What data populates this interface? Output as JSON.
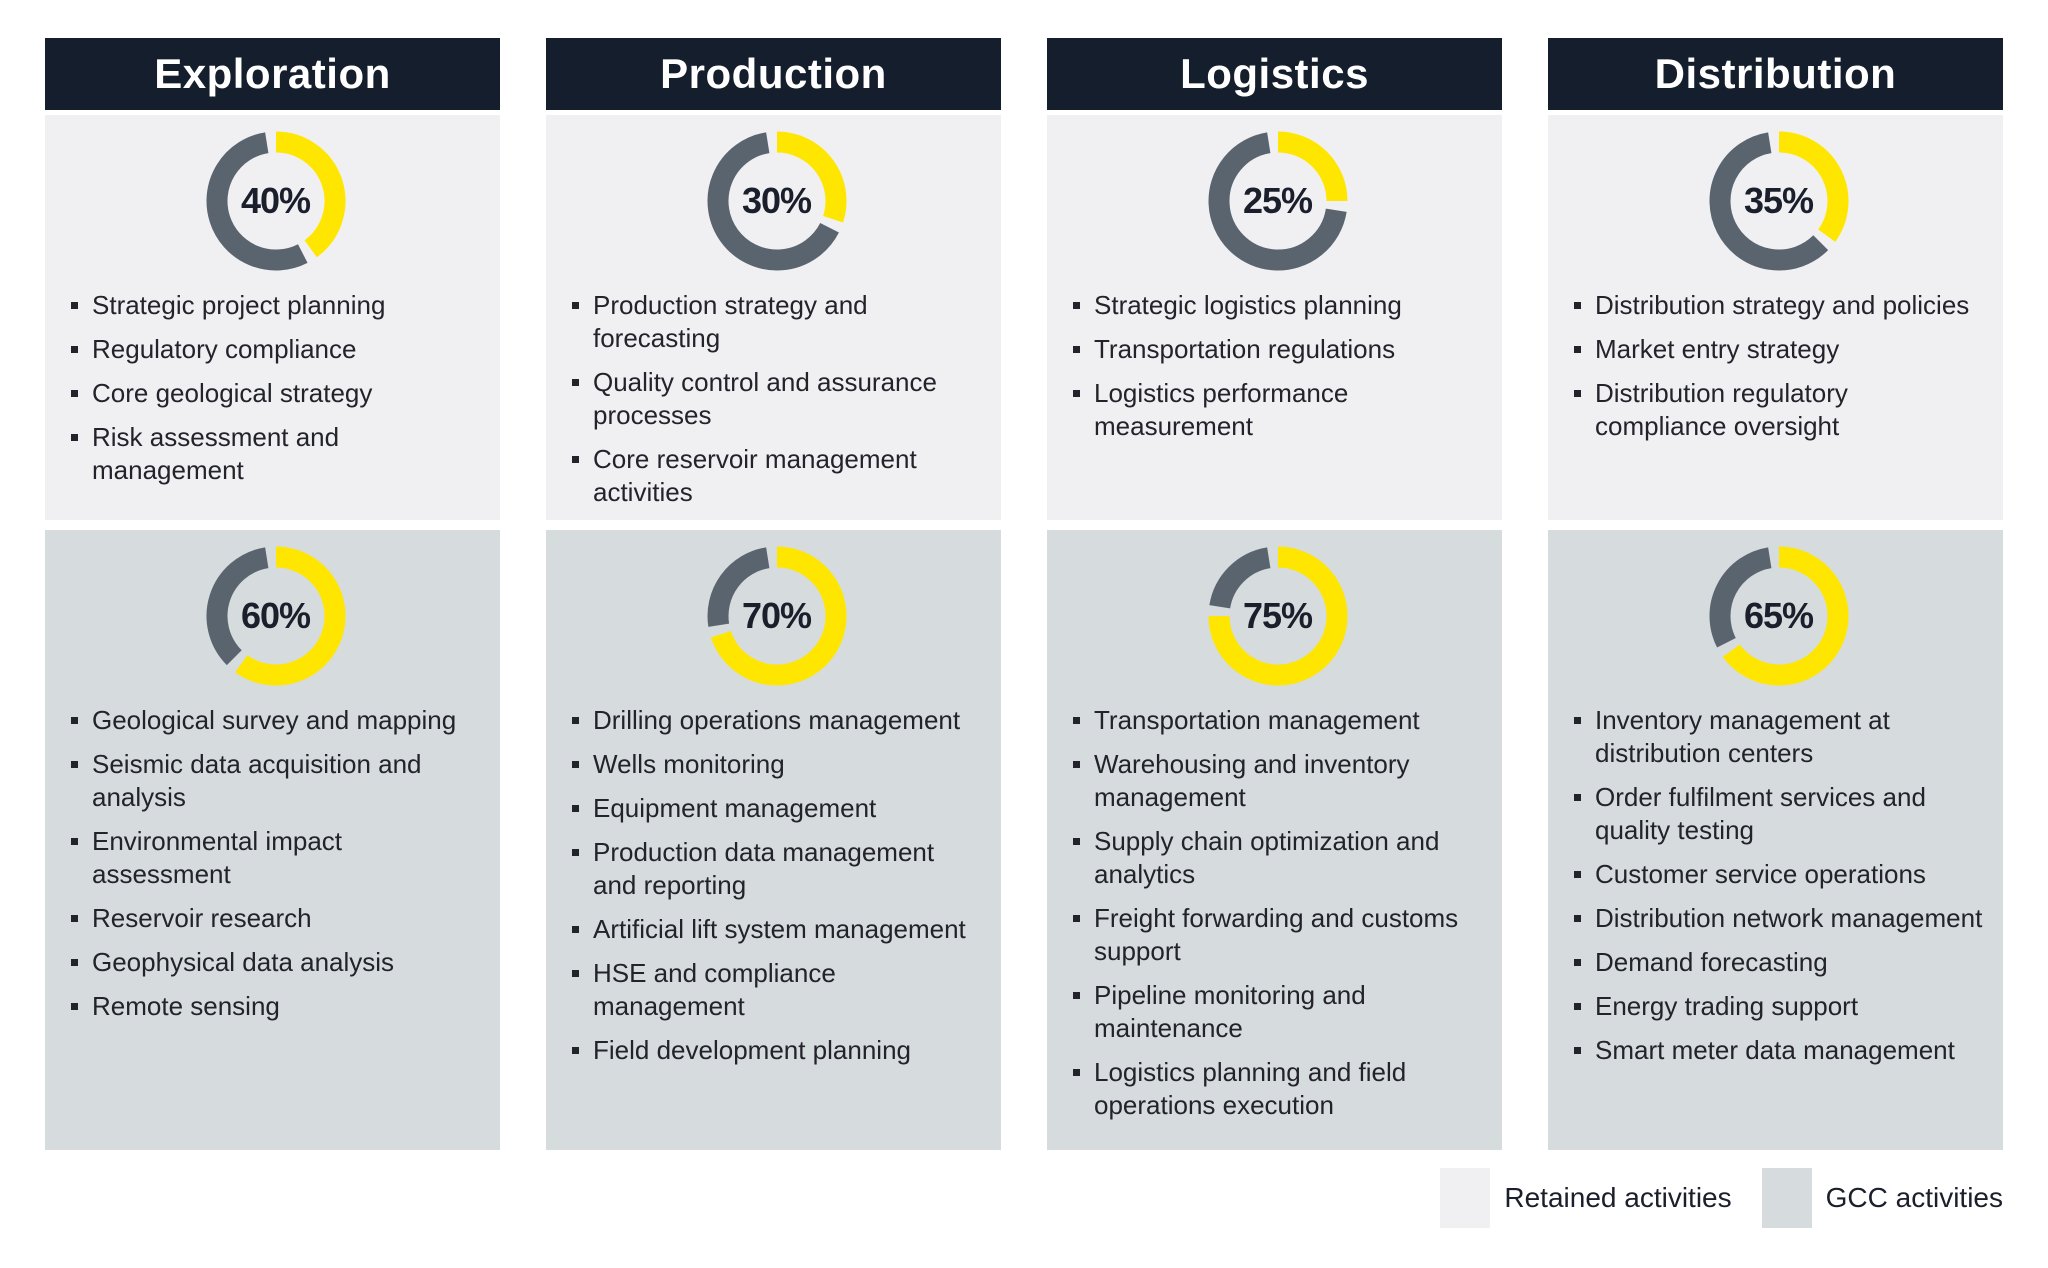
{
  "colors": {
    "header_bg": "#151E2C",
    "retained_bg": "#F0F0F3",
    "gcc_bg": "#D6DBDE",
    "donut_yellow": "#FFE600",
    "donut_slate": "#5A646F",
    "dark_text": "#1A1F2B",
    "body_text": "#23232B"
  },
  "legend": {
    "items": [
      {
        "label": "Retained activities",
        "color": "#F0F0F3"
      },
      {
        "label": "GCC activities",
        "color": "#D6DBDE"
      }
    ]
  },
  "columns": [
    {
      "title": "Exploration",
      "retained": {
        "percent": 40,
        "percent_label": "40%",
        "items": [
          "Strategic project planning",
          "Regulatory compliance",
          "Core geological strategy",
          "Risk assessment and management"
        ]
      },
      "gcc": {
        "percent": 60,
        "percent_label": "60%",
        "items": [
          "Geological survey and mapping",
          "Seismic data acquisition and analysis",
          "Environmental impact assessment",
          "Reservoir research",
          "Geophysical data analysis",
          "Remote sensing"
        ]
      }
    },
    {
      "title": "Production",
      "retained": {
        "percent": 30,
        "percent_label": "30%",
        "items": [
          "Production strategy and forecasting",
          "Quality control and assurance processes",
          "Core reservoir management activities"
        ]
      },
      "gcc": {
        "percent": 70,
        "percent_label": "70%",
        "items": [
          "Drilling operations management",
          "Wells monitoring",
          "Equipment management",
          "Production data management and reporting",
          "Artificial lift system management",
          "HSE and compliance management",
          "Field development planning"
        ]
      }
    },
    {
      "title": "Logistics",
      "retained": {
        "percent": 25,
        "percent_label": "25%",
        "items": [
          "Strategic logistics planning",
          "Transportation regulations",
          "Logistics performance measurement"
        ]
      },
      "gcc": {
        "percent": 75,
        "percent_label": "75%",
        "items": [
          "Transportation management",
          "Warehousing and inventory management",
          "Supply chain optimization and analytics",
          "Freight forwarding and customs support",
          "Pipeline monitoring and maintenance",
          "Logistics planning and field operations execution"
        ]
      }
    },
    {
      "title": "Distribution",
      "retained": {
        "percent": 35,
        "percent_label": "35%",
        "items": [
          "Distribution strategy and policies",
          "Market entry strategy",
          "Distribution regulatory compliance oversight"
        ]
      },
      "gcc": {
        "percent": 65,
        "percent_label": "65%",
        "items": [
          "Inventory management at distribution centers",
          "Order fulfilment services and quality testing",
          "Customer service operations",
          "Distribution network management",
          "Demand forecasting",
          "Energy trading support",
          "Smart meter data management"
        ]
      }
    }
  ],
  "chart_data": [
    {
      "type": "pie",
      "title": "Exploration — Retained activities donut",
      "center_label": "40%",
      "labels": [
        "share",
        "remainder"
      ],
      "values": [
        40,
        60
      ],
      "colors": [
        "#FFE600",
        "#5A646F"
      ]
    },
    {
      "type": "pie",
      "title": "Exploration — GCC activities donut",
      "center_label": "60%",
      "labels": [
        "share",
        "remainder"
      ],
      "values": [
        60,
        40
      ],
      "colors": [
        "#FFE600",
        "#5A646F"
      ]
    },
    {
      "type": "pie",
      "title": "Production — Retained activities donut",
      "center_label": "30%",
      "labels": [
        "share",
        "remainder"
      ],
      "values": [
        30,
        70
      ],
      "colors": [
        "#FFE600",
        "#5A646F"
      ]
    },
    {
      "type": "pie",
      "title": "Production — GCC activities donut",
      "center_label": "70%",
      "labels": [
        "share",
        "remainder"
      ],
      "values": [
        70,
        30
      ],
      "colors": [
        "#FFE600",
        "#5A646F"
      ]
    },
    {
      "type": "pie",
      "title": "Logistics — Retained activities donut",
      "center_label": "25%",
      "labels": [
        "share",
        "remainder"
      ],
      "values": [
        25,
        75
      ],
      "colors": [
        "#FFE600",
        "#5A646F"
      ]
    },
    {
      "type": "pie",
      "title": "Logistics — GCC activities donut",
      "center_label": "75%",
      "labels": [
        "share",
        "remainder"
      ],
      "values": [
        75,
        25
      ],
      "colors": [
        "#FFE600",
        "#5A646F"
      ]
    },
    {
      "type": "pie",
      "title": "Distribution — Retained activities donut",
      "center_label": "35%",
      "labels": [
        "share",
        "remainder"
      ],
      "values": [
        35,
        65
      ],
      "colors": [
        "#FFE600",
        "#5A646F"
      ]
    },
    {
      "type": "pie",
      "title": "Distribution — GCC activities donut",
      "center_label": "65%",
      "labels": [
        "share",
        "remainder"
      ],
      "values": [
        65,
        35
      ],
      "colors": [
        "#FFE600",
        "#5A646F"
      ]
    }
  ]
}
